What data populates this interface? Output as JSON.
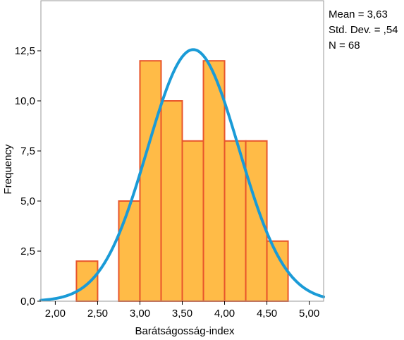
{
  "stats": {
    "mean": "Mean = 3,63",
    "std_dev": "Std. Dev. = ,54",
    "n": "N = 68"
  },
  "colors": {
    "bar_fill": "#FFBB47",
    "bar_stroke": "#E8552B",
    "curve": "#1A9BD7",
    "frame": "#999999"
  },
  "chart_data": {
    "type": "bar",
    "subtype": "histogram",
    "xlabel": "Barátságosság-index",
    "ylabel": "Frequency",
    "xlim": [
      1.83,
      5.17
    ],
    "ylim": [
      0,
      15.0
    ],
    "xticks": [
      2.0,
      2.5,
      3.0,
      3.5,
      4.0,
      4.5,
      5.0
    ],
    "xtick_labels": [
      "2,00",
      "2,50",
      "3,00",
      "3,50",
      "4,00",
      "4,50",
      "5,00"
    ],
    "yticks": [
      0,
      2.5,
      5.0,
      7.5,
      10.0,
      12.5
    ],
    "ytick_labels": [
      "0,0",
      "2,5",
      "5,0",
      "7,5",
      "10,0",
      "12,5"
    ],
    "bin_width": 0.25,
    "bins": [
      {
        "start": 2.25,
        "end": 2.5,
        "count": 2
      },
      {
        "start": 2.75,
        "end": 3.0,
        "count": 5
      },
      {
        "start": 3.0,
        "end": 3.25,
        "count": 12
      },
      {
        "start": 3.25,
        "end": 3.5,
        "count": 10
      },
      {
        "start": 3.5,
        "end": 3.75,
        "count": 8
      },
      {
        "start": 3.75,
        "end": 4.0,
        "count": 12
      },
      {
        "start": 4.0,
        "end": 4.25,
        "count": 8
      },
      {
        "start": 4.25,
        "end": 4.5,
        "count": 8
      },
      {
        "start": 4.5,
        "end": 4.75,
        "count": 3
      }
    ],
    "normal_curve": {
      "mean": 3.63,
      "std_dev": 0.54,
      "n": 68
    }
  }
}
